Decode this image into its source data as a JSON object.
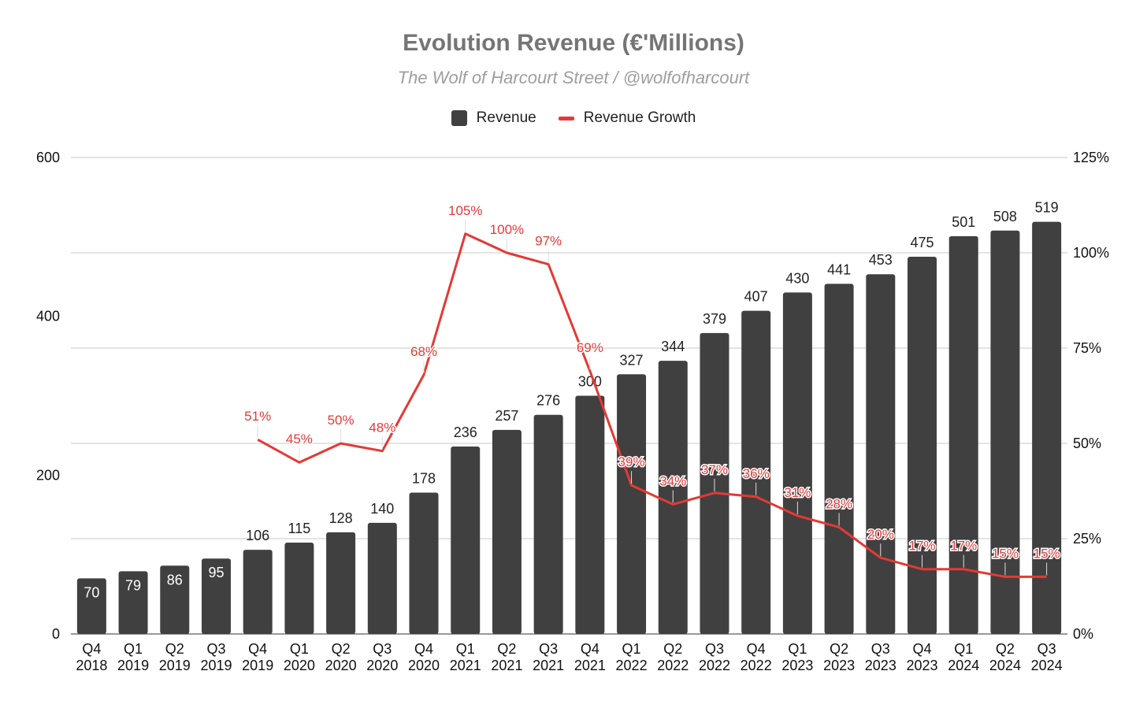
{
  "colors": {
    "bar": "#404040",
    "line": "#e53935",
    "grid": "#c8c8c8",
    "axis_text": "#111111",
    "value_text": "#222222"
  },
  "chart_data": {
    "type": "bar",
    "title": "Evolution Revenue (€'Millions)",
    "subtitle": "The Wolf of Harcourt Street / @wolfofharcourt",
    "legend_position": "top",
    "grid": true,
    "categories": [
      "Q4\n2018",
      "Q1\n2019",
      "Q2\n2019",
      "Q3\n2019",
      "Q4\n2019",
      "Q1\n2020",
      "Q2\n2020",
      "Q3\n2020",
      "Q4\n2020",
      "Q1\n2021",
      "Q2\n2021",
      "Q3\n2021",
      "Q4\n2021",
      "Q1\n2022",
      "Q2\n2022",
      "Q3\n2022",
      "Q4\n2022",
      "Q1\n2023",
      "Q2\n2023",
      "Q3\n2023",
      "Q4\n2023",
      "Q1\n2024",
      "Q2\n2024",
      "Q3\n2024"
    ],
    "series": [
      {
        "name": "Revenue",
        "type": "bar",
        "axis": "left",
        "values": [
          70,
          79,
          86,
          95,
          106,
          115,
          128,
          140,
          178,
          236,
          257,
          276,
          300,
          327,
          344,
          379,
          407,
          430,
          441,
          453,
          475,
          501,
          508,
          519
        ]
      },
      {
        "name": "Revenue Growth",
        "type": "line",
        "axis": "right",
        "values": [
          null,
          null,
          null,
          null,
          51,
          45,
          50,
          48,
          68,
          105,
          100,
          97,
          69,
          39,
          34,
          37,
          36,
          31,
          28,
          20,
          17,
          17,
          15,
          15
        ],
        "labels": [
          "",
          "",
          "",
          "",
          "51%",
          "45%",
          "50%",
          "48%",
          "68%",
          "105%",
          "100%",
          "97%",
          "69%",
          "39%",
          "34%",
          "37%",
          "36%",
          "31%",
          "28%",
          "20%",
          "17%",
          "17%",
          "15%",
          "15%"
        ]
      }
    ],
    "y_left": {
      "ylim": [
        0,
        600
      ],
      "ticks": [
        0,
        200,
        400,
        600
      ],
      "tick_labels": [
        "0",
        "200",
        "400",
        "600"
      ]
    },
    "y_right": {
      "ylim": [
        0,
        125
      ],
      "ticks": [
        0,
        25,
        50,
        75,
        100,
        125
      ],
      "tick_labels": [
        "0%",
        "25%",
        "50%",
        "75%",
        "100%",
        "125%"
      ]
    }
  }
}
